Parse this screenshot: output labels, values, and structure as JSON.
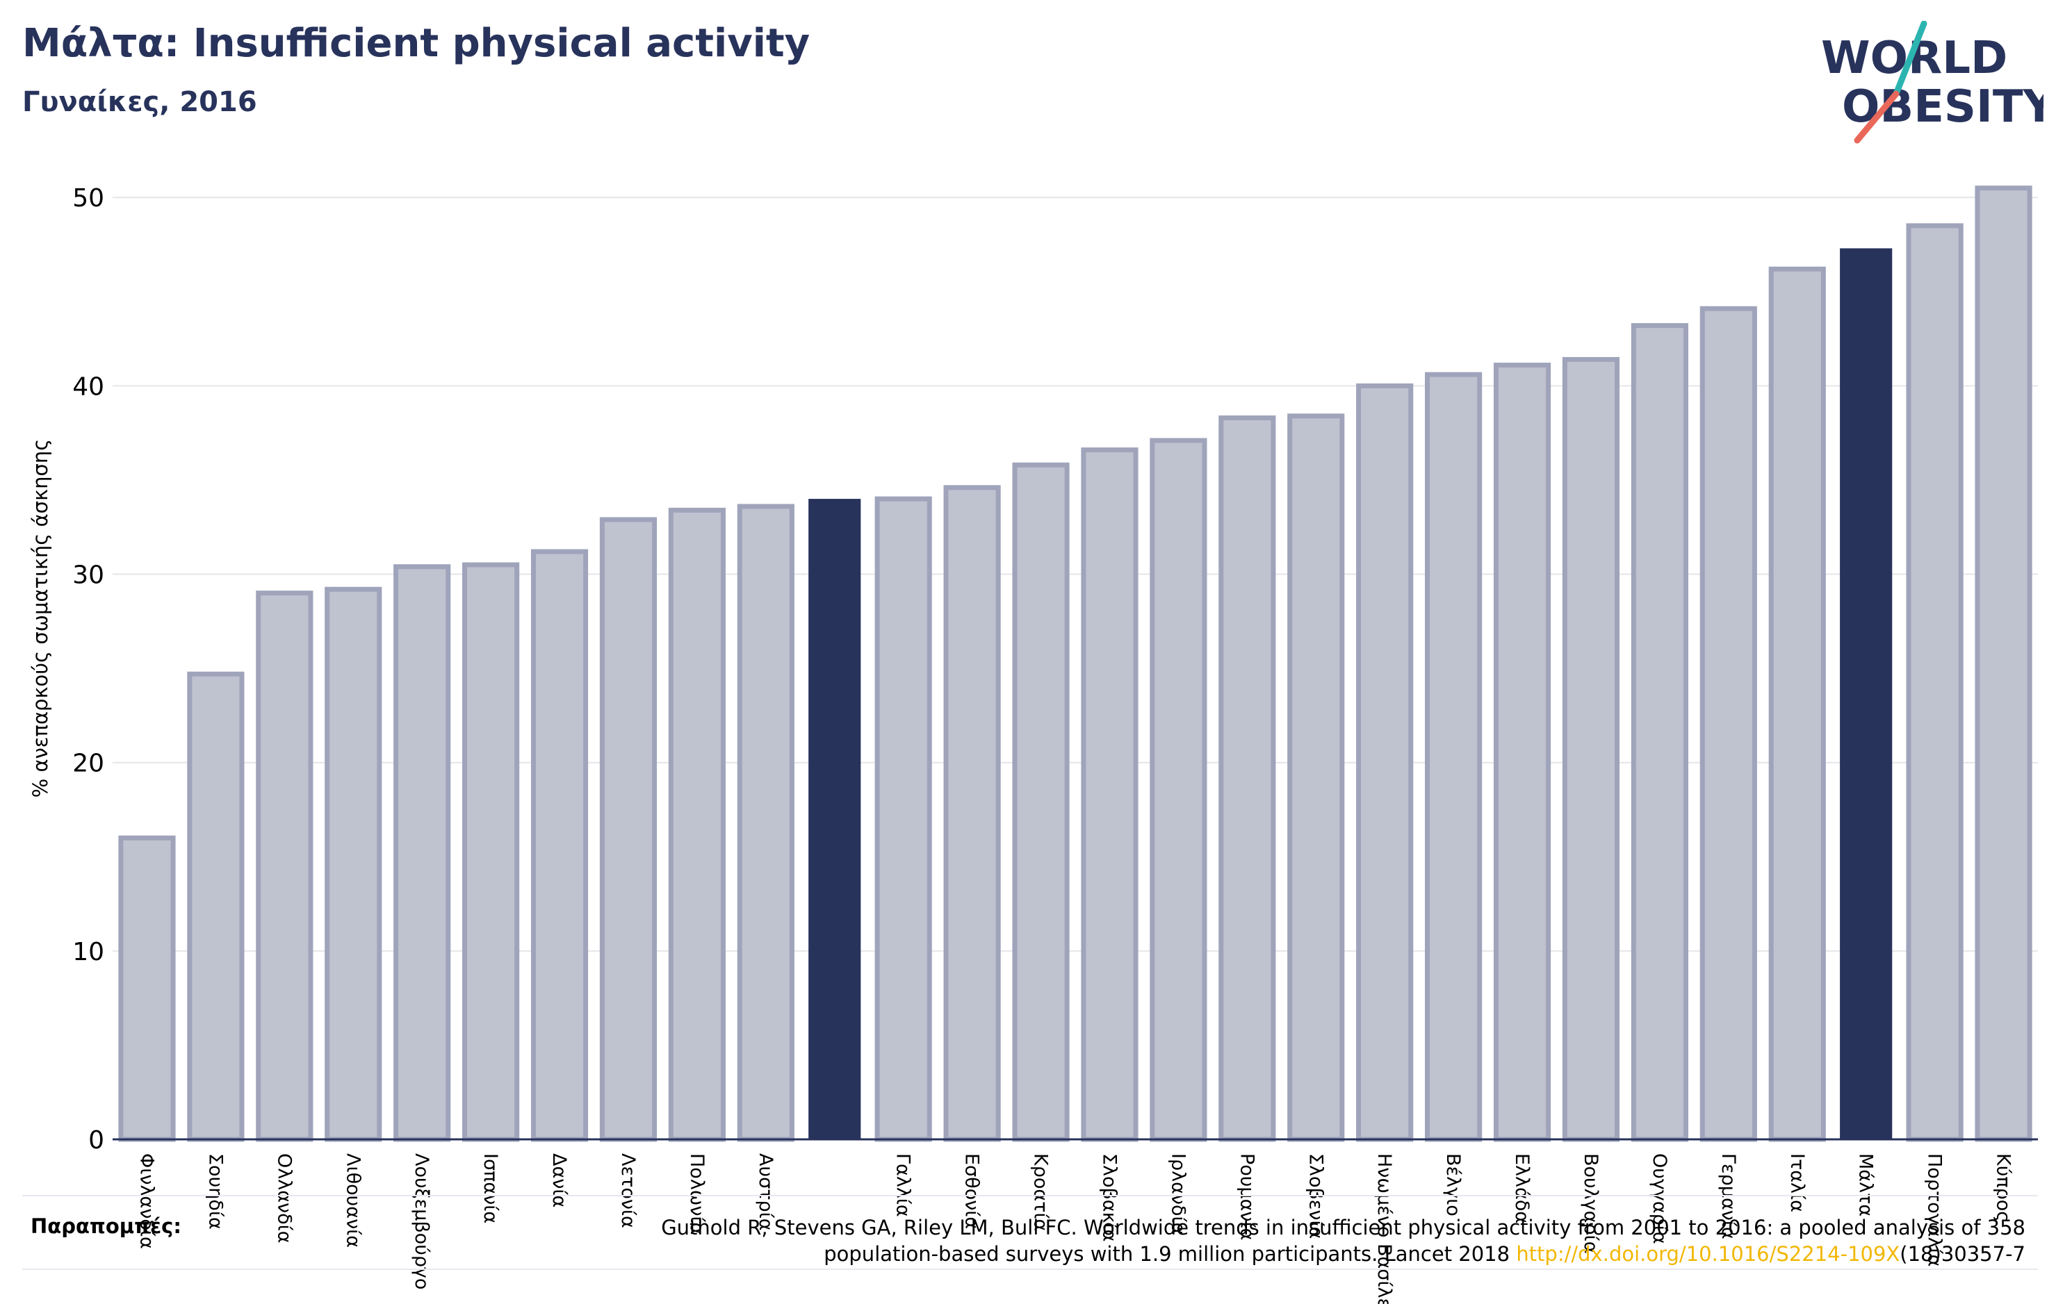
{
  "title": "Μάλτα: Insufficient physical activity",
  "subtitle": "Γυναίκες, 2016",
  "logo": {
    "line1": "WORLD",
    "line2": "OBESITY"
  },
  "colors": {
    "default_fill": "#bfc2cf",
    "default_stroke": "#9fa4bb",
    "highlight": "#28335c",
    "grid": "#e6e6ea",
    "link": "#f2b705"
  },
  "chart_data": {
    "type": "bar",
    "ylabel": "% ανεπαρκούς σωματικής άσκησης",
    "ylim": [
      0,
      52
    ],
    "yticks": [
      0,
      10,
      20,
      30,
      40,
      50
    ],
    "grid": true,
    "categories": [
      "Φινλανδία",
      "Σουηδία",
      "Ολλανδία",
      "Λιθουανία",
      "Λουξεμβούργο",
      "Ισπανία",
      "Δανία",
      "Λετονία",
      "Πολωνία",
      "Αυστρία",
      "",
      "Γαλλία",
      "Εσθονία",
      "Κροατία",
      "Σλοβακία",
      "Ιρλανδία",
      "Ρουμανία",
      "Σλοβενία",
      "Ηνωμένο Βασίλειο",
      "Βέλγιο",
      "Ελλάδα",
      "Βουλγαρία",
      "Ουγγαρία",
      "Γερμανία",
      "Ιταλία",
      "Μάλτα",
      "Πορτογαλία",
      "Κύπρος"
    ],
    "values": [
      16.0,
      24.7,
      29.0,
      29.2,
      30.4,
      30.5,
      31.2,
      32.9,
      33.4,
      33.6,
      34.0,
      34.0,
      34.6,
      35.8,
      36.6,
      37.1,
      38.3,
      38.4,
      40.0,
      40.6,
      41.1,
      41.4,
      43.2,
      44.1,
      46.2,
      47.3,
      48.5,
      50.5
    ],
    "highlight": [
      10,
      25
    ]
  },
  "references": {
    "label": "Παραπομπές:",
    "line1": "Guthold R, Stevens GA, Riley LM, Bull FC. Worldwide trends in insufficient physical activity from 2001 to 2016: a pooled analysis of 358",
    "line2_prefix": "population-based surveys with 1.9 million participants. Lancet 2018 ",
    "link": "http://dx.doi.org/10.1016/S2214-109X",
    "line2_suffix": "(18)30357-7"
  }
}
